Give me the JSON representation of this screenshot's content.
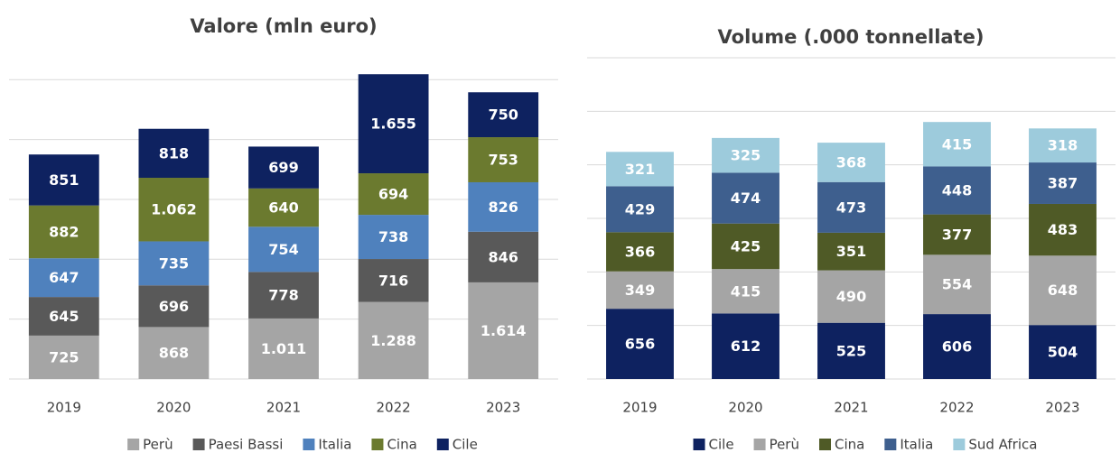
{
  "chart_data": [
    {
      "type": "stacked_bar",
      "title": "Valore (mln euro)",
      "categories": [
        "2019",
        "2020",
        "2021",
        "2022",
        "2023"
      ],
      "series": [
        {
          "name": "Perù",
          "color": "#a5a5a5",
          "values": [
            725,
            868,
            1011,
            1288,
            1614
          ],
          "value_labels": [
            "725",
            "868",
            "1.011",
            "1.288",
            "1.614"
          ]
        },
        {
          "name": "Paesi Bassi",
          "color": "#595959",
          "values": [
            645,
            696,
            778,
            716,
            846
          ]
        },
        {
          "name": "Italia",
          "color": "#4f81bd",
          "values": [
            647,
            735,
            754,
            738,
            826
          ]
        },
        {
          "name": "Cina",
          "color": "#6b7a2f",
          "values": [
            882,
            1062,
            640,
            694,
            753
          ],
          "value_labels": [
            "882",
            "1.062",
            "640",
            "694",
            "753"
          ]
        },
        {
          "name": "Cile",
          "color": "#0e2260",
          "values": [
            851,
            818,
            699,
            1655,
            750
          ],
          "value_labels": [
            "851",
            "818",
            "699",
            "1.655",
            "750"
          ]
        }
      ],
      "ylim": [
        0,
        5200
      ],
      "yticks": [
        0,
        1000,
        2000,
        3000,
        4000,
        5000
      ],
      "grid": true,
      "legend": "bottom"
    },
    {
      "type": "stacked_bar",
      "title": "Volume (.000 tonnellate)",
      "categories": [
        "2019",
        "2020",
        "2021",
        "2022",
        "2023"
      ],
      "series": [
        {
          "name": "Cile",
          "color": "#0e2260",
          "values": [
            656,
            612,
            525,
            606,
            504
          ]
        },
        {
          "name": "Perù",
          "color": "#a5a5a5",
          "values": [
            349,
            415,
            490,
            554,
            648
          ]
        },
        {
          "name": "Cina",
          "color": "#4f5a26",
          "values": [
            366,
            425,
            351,
            377,
            483
          ]
        },
        {
          "name": "Italia",
          "color": "#3e5f8e",
          "values": [
            429,
            474,
            473,
            448,
            387
          ]
        },
        {
          "name": "Sud Africa",
          "color": "#9dcbdc",
          "values": [
            321,
            325,
            368,
            415,
            318
          ]
        }
      ],
      "ylim": [
        0,
        3000
      ],
      "yticks": [
        0,
        500,
        1000,
        1500,
        2000,
        2500,
        3000
      ],
      "grid": true,
      "legend": "bottom"
    }
  ]
}
